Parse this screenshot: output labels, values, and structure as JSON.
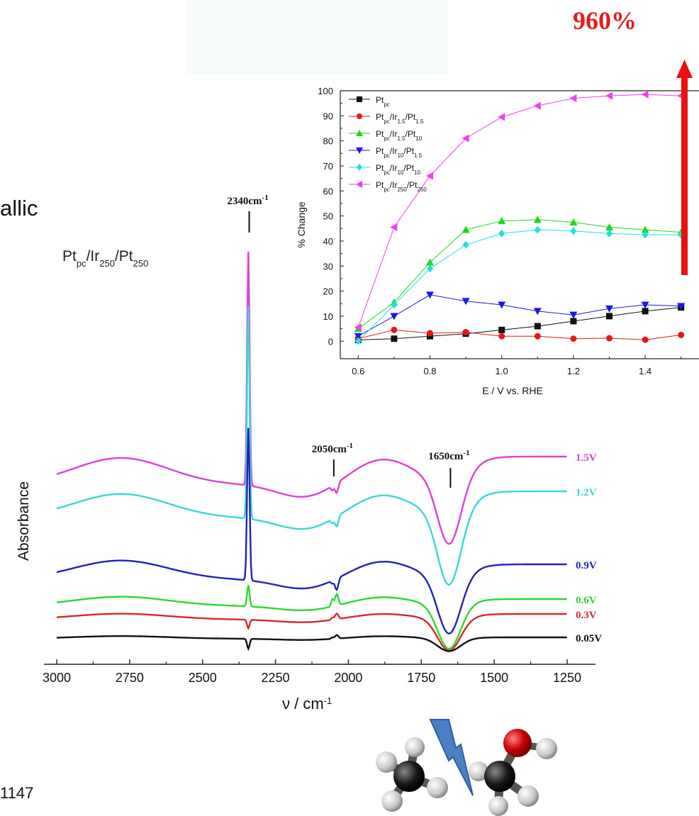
{
  "slide": {
    "title_fragment": "allic",
    "reference_fragment": "1147",
    "headline_value": "960%",
    "colors": {
      "arrow": "#e8110f",
      "headline": "#e0201c",
      "molecule_bolt": "#4a7fc6"
    }
  },
  "chart_data": [
    {
      "type": "line",
      "title": "Pt",
      "title_sub": [
        "pc",
        "250",
        "250"
      ],
      "title_parts": [
        "Pt",
        "/Ir",
        "/Pt"
      ],
      "xlabel": "ν / cm",
      "xlabel_sup": "-1",
      "ylabel": "Absorbance",
      "x_reversed": true,
      "xlim": [
        3000,
        1250
      ],
      "x_ticks": [
        3000,
        2750,
        2500,
        2250,
        2000,
        1750,
        1500,
        1250
      ],
      "grid": false,
      "annotations": [
        {
          "text": "2340cm",
          "sup": "-1",
          "x": 2340
        },
        {
          "text": "2050cm",
          "sup": "-1",
          "x": 2050
        },
        {
          "text": "1650cm",
          "sup": "-1",
          "x": 1650
        }
      ],
      "series": [
        {
          "name": "1.5V",
          "color": "#e03fd6",
          "label_color": "#e03fd6"
        },
        {
          "name": "1.2V",
          "color": "#3dd6d6",
          "label_color": "#3dd6d6"
        },
        {
          "name": "0.9V",
          "color": "#2222b8",
          "label_color": "#2222b8"
        },
        {
          "name": "0.6V",
          "color": "#2fd62f",
          "label_color": "#2fd62f"
        },
        {
          "name": "0.3V",
          "color": "#d62a2a",
          "label_color": "#d62a2a"
        },
        {
          "name": "0.05V",
          "color": "#111111",
          "label_color": "#111111"
        }
      ]
    },
    {
      "type": "line",
      "xlabel": "E / V vs. RHE",
      "ylabel": "% Change",
      "xlim": [
        0.55,
        1.55
      ],
      "ylim": [
        -7,
        100
      ],
      "x_ticks": [
        0.6,
        0.8,
        1.0,
        1.2,
        1.4
      ],
      "y_ticks": [
        0,
        10,
        20,
        30,
        40,
        50,
        60,
        70,
        80,
        90,
        100
      ],
      "x": [
        0.6,
        0.7,
        0.8,
        0.9,
        1.0,
        1.1,
        1.2,
        1.3,
        1.4,
        1.5
      ],
      "legend_position": "top-left",
      "grid": false,
      "series": [
        {
          "name": "Pt",
          "name_sub": "pc",
          "legend": [
            "Pt",
            "pc"
          ],
          "marker": "square",
          "color": "#111111",
          "values": [
            0.5,
            1.0,
            2.0,
            3.0,
            4.5,
            6.0,
            8.0,
            10.0,
            12.0,
            13.5
          ]
        },
        {
          "name": "Pt/Ir/Pt",
          "legend": [
            "Pt",
            "pc",
            "/Ir",
            "1.5",
            "/Pt",
            "1.5"
          ],
          "marker": "circle",
          "color": "#e81818",
          "values": [
            1.0,
            4.5,
            3.2,
            3.6,
            2.0,
            2.0,
            1.0,
            1.2,
            0.6,
            2.5
          ]
        },
        {
          "name": "Pt/Ir/Pt",
          "legend": [
            "Pt",
            "pc",
            "/Ir",
            "1.5",
            "/Pt",
            "10"
          ],
          "marker": "triangle-up",
          "color": "#1fd61f",
          "values": [
            5.0,
            15.5,
            31.5,
            44.5,
            48.0,
            48.5,
            47.5,
            45.5,
            44.5,
            43.5
          ]
        },
        {
          "name": "Pt/Ir/Pt",
          "legend": [
            "Pt",
            "pc",
            "/Ir",
            "10",
            "/Pt",
            "1.5"
          ],
          "marker": "triangle-down",
          "color": "#1a1ae6",
          "values": [
            2.0,
            10.0,
            18.5,
            16.0,
            14.5,
            12.0,
            10.5,
            13.0,
            14.5,
            14.0
          ]
        },
        {
          "name": "Pt/Ir/Pt",
          "legend": [
            "Pt",
            "pc",
            "/Ir",
            "10",
            "/Pt",
            "10"
          ],
          "marker": "diamond",
          "color": "#1fe0e0",
          "values": [
            0.0,
            14.5,
            29.0,
            38.5,
            43.0,
            44.5,
            44.0,
            43.0,
            42.5,
            42.5
          ]
        },
        {
          "name": "Pt/Ir/Pt",
          "legend": [
            "Pt",
            "pc",
            "/Ir",
            "250",
            "/Pt",
            "250"
          ],
          "marker": "triangle-left",
          "color": "#f03ef0",
          "values": [
            5.5,
            45.5,
            66.0,
            81.0,
            89.5,
            94.0,
            97.0,
            98.0,
            98.5,
            98.0
          ]
        }
      ]
    }
  ]
}
